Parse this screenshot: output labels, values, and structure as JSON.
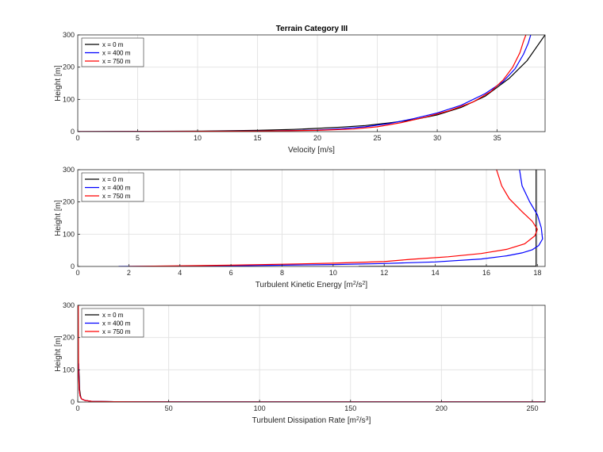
{
  "title": "Terrain Category III",
  "legend": [
    "x = 0 m",
    "x = 400 m",
    "x = 750 m"
  ],
  "colors": {
    "x0": "#000000",
    "x400": "#0000ff",
    "x750": "#ff0000"
  },
  "chart_data": [
    {
      "type": "line",
      "title": "Terrain Category III",
      "xlabel": "Velocity [m/s]",
      "ylabel": "Height [m]",
      "xlim": [
        0,
        39
      ],
      "ylim": [
        0,
        300
      ],
      "xticks": [
        0,
        5,
        10,
        15,
        20,
        25,
        30,
        35
      ],
      "yticks": [
        0,
        100,
        200,
        300
      ],
      "grid": true,
      "legend_position": "top-left",
      "series": [
        {
          "name": "x = 0 m",
          "color": "#000000",
          "x": [
            0,
            10,
            15,
            18,
            20,
            22,
            24,
            26,
            28,
            30,
            32,
            34,
            36,
            37.5,
            39
          ],
          "y": [
            0,
            1.5,
            4,
            7,
            10,
            14,
            19,
            27,
            37,
            52,
            75,
            110,
            165,
            220,
            300
          ]
        },
        {
          "name": "x = 400 m",
          "color": "#0000ff",
          "x": [
            0,
            15,
            20,
            22,
            24,
            26,
            28,
            30,
            32,
            34,
            35.5,
            36.5,
            37.2,
            37.6,
            37.8
          ],
          "y": [
            0,
            1.5,
            5,
            9,
            15,
            25,
            40,
            58,
            82,
            118,
            155,
            195,
            240,
            275,
            300
          ]
        },
        {
          "name": "x = 750 m",
          "color": "#ff0000",
          "x": [
            0,
            15,
            20,
            23,
            25,
            27,
            29,
            31,
            33,
            34.5,
            35.5,
            36.3,
            36.9,
            37.2,
            37.4
          ],
          "y": [
            0,
            1.5,
            4,
            8,
            15,
            28,
            45,
            65,
            92,
            125,
            160,
            200,
            245,
            280,
            300
          ]
        }
      ]
    },
    {
      "type": "line",
      "xlabel": "Turbulent Kinetic Energy [m",
      "xlabel_sup1": "2",
      "xlabel_mid": "/s",
      "xlabel_sup2": "2",
      "xlabel_end": "]",
      "ylabel": "Height [m]",
      "xlim": [
        0,
        18.3
      ],
      "ylim": [
        0,
        300
      ],
      "xticks": [
        0,
        2,
        4,
        6,
        8,
        10,
        12,
        14,
        16,
        18
      ],
      "yticks": [
        0,
        100,
        200,
        300
      ],
      "grid": true,
      "legend_position": "top-left",
      "series": [
        {
          "name": "x = 0 m",
          "color": "#000000",
          "x": [
            11,
            17.95,
            17.95,
            17.95
          ],
          "y": [
            0,
            1,
            150,
            300
          ]
        },
        {
          "name": "x = 400 m",
          "color": "#0000ff",
          "x": [
            1.6,
            4,
            6,
            8,
            10,
            12,
            14,
            15.8,
            16.8,
            17.4,
            17.8,
            18.05,
            18.2,
            18.15,
            18.0,
            17.7,
            17.4,
            17.3
          ],
          "y": [
            0,
            1,
            2,
            4,
            6,
            9,
            14,
            23,
            33,
            42,
            52,
            65,
            85,
            120,
            160,
            200,
            250,
            300
          ]
        },
        {
          "name": "x = 750 m",
          "color": "#ff0000",
          "x": [
            2,
            4,
            6,
            8,
            10,
            12,
            13,
            14.5,
            15.8,
            16.8,
            17.5,
            17.9,
            18.0,
            17.8,
            17.4,
            16.9,
            16.6,
            16.4
          ],
          "y": [
            0,
            2,
            4,
            7,
            10,
            15,
            22,
            30,
            40,
            53,
            70,
            95,
            115,
            140,
            170,
            210,
            250,
            300
          ]
        }
      ]
    },
    {
      "type": "line",
      "xlabel": "Turbulent Dissipation Rate [m",
      "xlabel_sup1": "2",
      "xlabel_mid": "/s",
      "xlabel_sup2": "3",
      "xlabel_end": "]",
      "ylabel": "Height [m]",
      "xlim": [
        0,
        257
      ],
      "ylim": [
        0,
        300
      ],
      "xticks": [
        0,
        50,
        100,
        150,
        200,
        250
      ],
      "yticks": [
        0,
        100,
        200,
        300
      ],
      "grid": true,
      "legend_position": "top-left",
      "series": [
        {
          "name": "x = 0 m",
          "color": "#000000",
          "x": [
            257,
            60,
            20,
            8,
            4,
            2,
            1.5,
            1,
            0.8,
            0.6
          ],
          "y": [
            0.3,
            0.5,
            1,
            2,
            5,
            10,
            20,
            40,
            80,
            100
          ]
        },
        {
          "name": "x = 400 m",
          "color": "#0000ff",
          "x": [
            257,
            60,
            20,
            8,
            4,
            2,
            1.2,
            0.8,
            0.6,
            0.5
          ],
          "y": [
            0.3,
            0.5,
            1,
            2,
            5,
            10,
            20,
            40,
            80,
            120
          ]
        },
        {
          "name": "x = 750 m",
          "color": "#ff0000",
          "x": [
            257,
            60,
            20,
            8,
            4,
            2,
            1.2,
            0.8,
            0.5,
            0.4,
            0.3
          ],
          "y": [
            0.3,
            0.5,
            1,
            2,
            5,
            10,
            20,
            40,
            80,
            140,
            300
          ]
        }
      ]
    }
  ]
}
